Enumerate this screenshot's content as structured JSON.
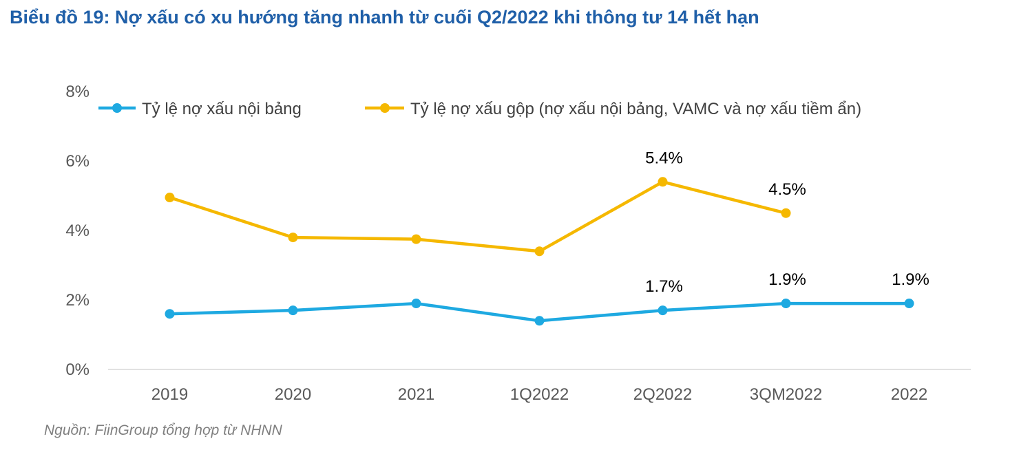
{
  "title": "Biểu đồ 19: Nợ xấu có xu hướng tăng nhanh từ cuối Q2/2022 khi thông tư 14 hết hạn",
  "source": "Nguồn: FiinGroup tổng hợp từ NHNN",
  "chart_data": {
    "type": "line",
    "title": "Biểu đồ 19: Nợ xấu có xu hướng tăng nhanh từ cuối Q2/2022 khi thông tư 14 hết hạn",
    "categories": [
      "2019",
      "2020",
      "2021",
      "1Q2022",
      "2Q2022",
      "3QM2022",
      "2022"
    ],
    "ylim": [
      0,
      8
    ],
    "yticks": [
      0,
      2,
      4,
      6,
      8
    ],
    "ytick_labels": [
      "0%",
      "2%",
      "4%",
      "6%",
      "8%"
    ],
    "grid": false,
    "legend_position": "top",
    "series": [
      {
        "name": "Tỷ lệ nợ xấu nội bảng",
        "color": "#1ea9e1",
        "values": [
          1.6,
          1.7,
          1.9,
          1.4,
          1.7,
          1.9,
          1.9
        ],
        "data_labels": [
          null,
          null,
          null,
          null,
          "1.7%",
          "1.9%",
          "1.9%"
        ]
      },
      {
        "name": "Tỷ lệ nợ xấu gộp (nợ xấu nội bảng, VAMC và nợ xấu tiềm ẩn)",
        "color": "#f5b800",
        "values": [
          4.95,
          3.8,
          3.75,
          3.4,
          5.4,
          4.5,
          null
        ],
        "data_labels": [
          null,
          null,
          null,
          null,
          "5.4%",
          "4.5%",
          null
        ]
      }
    ]
  }
}
